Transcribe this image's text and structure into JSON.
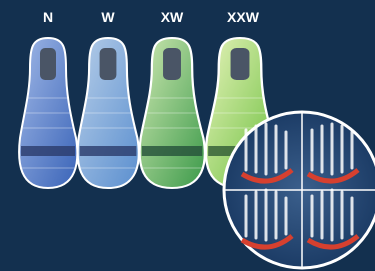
{
  "labels": [
    "N",
    "W",
    "XW",
    "XXW"
  ]
}
